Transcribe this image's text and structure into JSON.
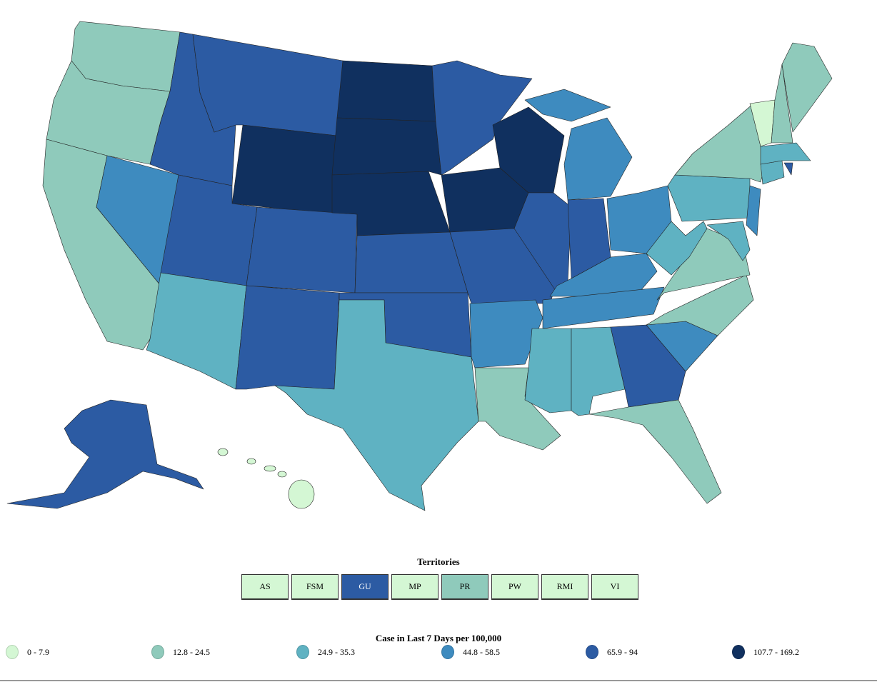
{
  "colors": [
    "#d4f7d4",
    "#8fcabb",
    "#5fb2c2",
    "#3e8bbf",
    "#2c5ba3",
    "#10305f"
  ],
  "legend": {
    "title": "Case in Last 7 Days per 100,000",
    "bins": [
      "0 - 7.9",
      "12.8 - 24.5",
      "24.9 - 35.3",
      "44.8 - 58.5",
      "65.9 - 94",
      "107.7 - 169.2"
    ]
  },
  "territories": {
    "title": "Territories",
    "items": [
      {
        "label": "AS",
        "bin": 0
      },
      {
        "label": "FSM",
        "bin": 0
      },
      {
        "label": "GU",
        "bin": 4
      },
      {
        "label": "MP",
        "bin": 0
      },
      {
        "label": "PR",
        "bin": 1
      },
      {
        "label": "PW",
        "bin": 0
      },
      {
        "label": "RMI",
        "bin": 0
      },
      {
        "label": "VI",
        "bin": 0
      }
    ]
  },
  "states": {
    "WA": 1,
    "OR": 1,
    "CA": 1,
    "NV": 3,
    "ID": 4,
    "MT": 4,
    "WY": 5,
    "UT": 4,
    "AZ": 2,
    "CO": 4,
    "NM": 4,
    "ND": 5,
    "SD": 5,
    "NE": 5,
    "KS": 4,
    "OK": 4,
    "TX": 2,
    "MN": 4,
    "IA": 5,
    "MO": 4,
    "AR": 3,
    "LA": 1,
    "WI": 5,
    "IL": 4,
    "MI": 3,
    "IN": 4,
    "OH": 3,
    "KY": 3,
    "TN": 3,
    "MS": 2,
    "AL": 2,
    "GA": 4,
    "FL": 1,
    "SC": 3,
    "NC": 1,
    "VA": 1,
    "WV": 2,
    "PA": 2,
    "NY": 1,
    "NJ": 3,
    "MD": 2,
    "CT": 2,
    "RI": 4,
    "MA": 2,
    "VT": 0,
    "NH": 1,
    "ME": 1,
    "AK": 4,
    "HI": 0
  }
}
